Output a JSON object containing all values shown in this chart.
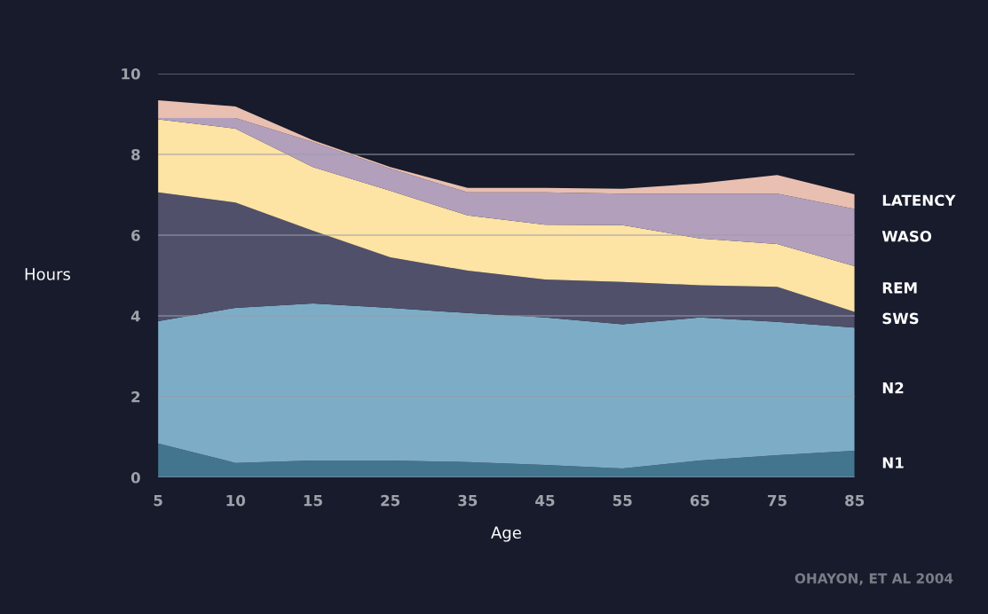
{
  "chart_data": {
    "type": "area",
    "stacked": true,
    "xlabel": "Age",
    "ylabel": "Hours",
    "categories": [
      "5",
      "10",
      "15",
      "25",
      "35",
      "45",
      "55",
      "65",
      "75",
      "85"
    ],
    "series": [
      {
        "name": "N1",
        "color": "#43758f",
        "values": [
          0.84,
          0.36,
          0.42,
          0.42,
          0.38,
          0.31,
          0.22,
          0.42,
          0.55,
          0.66
        ]
      },
      {
        "name": "N2",
        "color": "#7dadc6",
        "values": [
          3.03,
          3.84,
          3.89,
          3.78,
          3.69,
          3.65,
          3.57,
          3.54,
          3.3,
          3.05
        ]
      },
      {
        "name": "SWS",
        "color": "#50506b",
        "values": [
          3.19,
          2.61,
          1.8,
          1.25,
          1.05,
          0.94,
          1.05,
          0.8,
          0.87,
          0.39
        ]
      },
      {
        "name": "REM",
        "color": "#fde3a4",
        "values": [
          1.81,
          1.83,
          1.58,
          1.65,
          1.37,
          1.36,
          1.41,
          1.16,
          1.06,
          1.13
        ]
      },
      {
        "name": "WASO",
        "color": "#b29fbc",
        "values": [
          0.03,
          0.26,
          0.62,
          0.55,
          0.57,
          0.8,
          0.78,
          1.11,
          1.25,
          1.42
        ]
      },
      {
        "name": "LATENCY",
        "color": "#e8bfb0",
        "values": [
          0.44,
          0.29,
          0.04,
          0.04,
          0.11,
          0.11,
          0.12,
          0.25,
          0.46,
          0.36
        ]
      }
    ],
    "ylim": [
      0,
      10
    ],
    "yticks": [
      0,
      2,
      4,
      6,
      8,
      10
    ],
    "grid": "y",
    "annotations": [
      "OHAYON, ET AL 2004"
    ]
  }
}
